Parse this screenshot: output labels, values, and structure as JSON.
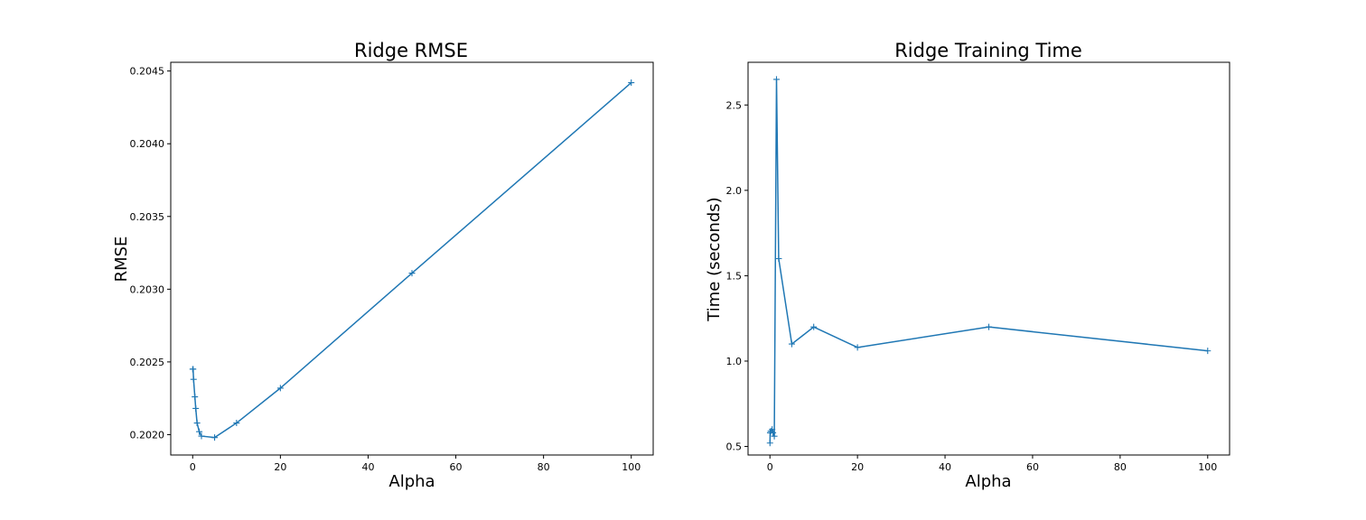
{
  "colors": {
    "series": "#1f77b4",
    "axes": "#000000",
    "background": "#ffffff"
  },
  "chart_data": [
    {
      "type": "line",
      "title": "Ridge RMSE",
      "xlabel": "Alpha",
      "ylabel": "RMSE",
      "xlim": [
        -5,
        105
      ],
      "ylim": [
        0.20186,
        0.20456
      ],
      "xticks": [
        0,
        20,
        40,
        60,
        80,
        100
      ],
      "yticks": [
        0.202,
        0.2025,
        0.203,
        0.2035,
        0.204,
        0.2045
      ],
      "ytick_decimals": 4,
      "grid": false,
      "marker": "+",
      "series": [
        {
          "x": [
            0.01,
            0.05,
            0.1,
            0.2,
            0.5,
            0.7,
            1,
            1.5,
            2,
            5,
            10,
            20,
            50,
            100
          ],
          "y": [
            0.20245,
            0.20245,
            0.20245,
            0.20238,
            0.20226,
            0.20218,
            0.20208,
            0.20202,
            0.20199,
            0.20198,
            0.20208,
            0.20232,
            0.20311,
            0.20442
          ]
        }
      ]
    },
    {
      "type": "line",
      "title": "Ridge Training Time",
      "xlabel": "Alpha",
      "ylabel": "Time (seconds)",
      "xlim": [
        -5,
        105
      ],
      "ylim": [
        0.45,
        2.75
      ],
      "xticks": [
        0,
        20,
        40,
        60,
        80,
        100
      ],
      "yticks": [
        0.5,
        1.0,
        1.5,
        2.0,
        2.5
      ],
      "ytick_decimals": 1,
      "grid": false,
      "marker": "+",
      "series": [
        {
          "x": [
            0.01,
            0.05,
            0.1,
            0.2,
            0.5,
            0.7,
            1,
            1.5,
            2,
            5,
            10,
            20,
            50,
            100
          ],
          "y": [
            0.52,
            0.58,
            0.58,
            0.59,
            0.6,
            0.58,
            0.56,
            2.65,
            1.6,
            1.1,
            1.2,
            1.08,
            1.2,
            1.06
          ]
        }
      ]
    }
  ]
}
